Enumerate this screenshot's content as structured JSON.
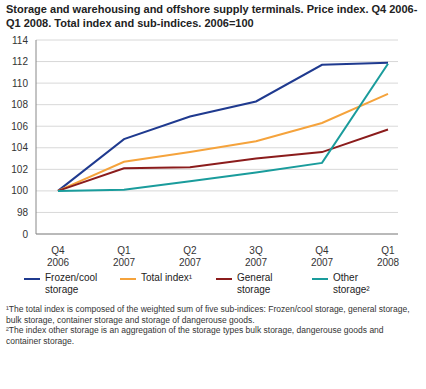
{
  "chart_data": {
    "type": "line",
    "title": "Storage and warehousing and offshore supply terminals. Price index. Q4 2006-Q1 2008. Total index and sub-indices. 2006=100",
    "categories": [
      "Q4\n2006",
      "Q1\n2007",
      "Q2\n2007",
      "3Q\n2007",
      "Q4\n2007",
      "Q1\n2008"
    ],
    "series": [
      {
        "name": "Frozen/cool storage",
        "color": "#1f3a8f",
        "values": [
          100,
          104.8,
          106.9,
          108.3,
          111.7,
          111.9
        ]
      },
      {
        "name": "Total index¹",
        "color": "#f5a33c",
        "values": [
          100,
          102.7,
          103.6,
          104.6,
          106.3,
          109.0
        ]
      },
      {
        "name": "General storage",
        "color": "#8b1c1c",
        "values": [
          100,
          102.1,
          102.2,
          103.0,
          103.6,
          105.7
        ]
      },
      {
        "name": "Other storage²",
        "color": "#1a9c9c",
        "values": [
          100,
          100.1,
          100.9,
          101.7,
          102.6,
          111.8
        ]
      }
    ],
    "ylim": [
      0,
      114
    ],
    "yticks": [
      0,
      98,
      100,
      102,
      104,
      106,
      108,
      110,
      112,
      114
    ],
    "grid": true,
    "legend": "bottom",
    "marker": "none",
    "line_style": "solid",
    "annotations": [
      "¹The total index is composed of the weighted sum of five sub-indices: Frozen/cool storage, general storage, bulk storage, container storage and storage of dangerouse goods.",
      "²The index other storage is an aggregation of the storage types bulk storage, dangerouse goods and container storage."
    ]
  }
}
